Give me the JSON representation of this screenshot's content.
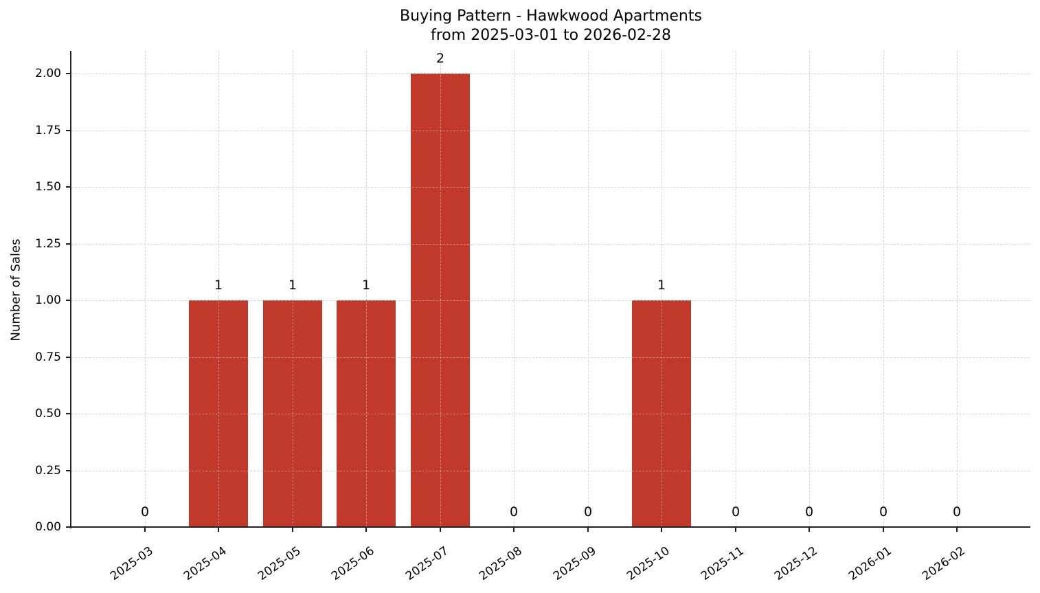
{
  "chart_data": {
    "type": "bar",
    "title": "Buying Pattern - Hawkwood Apartments",
    "subtitle": "from 2025-03-01 to 2026-02-28",
    "xlabel": "",
    "ylabel": "Number of Sales",
    "categories": [
      "2025-03",
      "2025-04",
      "2025-05",
      "2025-06",
      "2025-07",
      "2025-08",
      "2025-09",
      "2025-10",
      "2025-11",
      "2025-12",
      "2026-01",
      "2026-02"
    ],
    "values": [
      0,
      1,
      1,
      1,
      2,
      0,
      0,
      1,
      0,
      0,
      0,
      0
    ],
    "bar_labels": [
      "0",
      "1",
      "1",
      "1",
      "2",
      "0",
      "0",
      "1",
      "0",
      "0",
      "0",
      "0"
    ],
    "ylim": [
      0,
      2.1
    ],
    "yticks": [
      "0.00",
      "0.25",
      "0.50",
      "0.75",
      "1.00",
      "1.25",
      "1.50",
      "1.75",
      "2.00"
    ],
    "grid": true,
    "legend": null,
    "bar_color": "#C0392B"
  }
}
